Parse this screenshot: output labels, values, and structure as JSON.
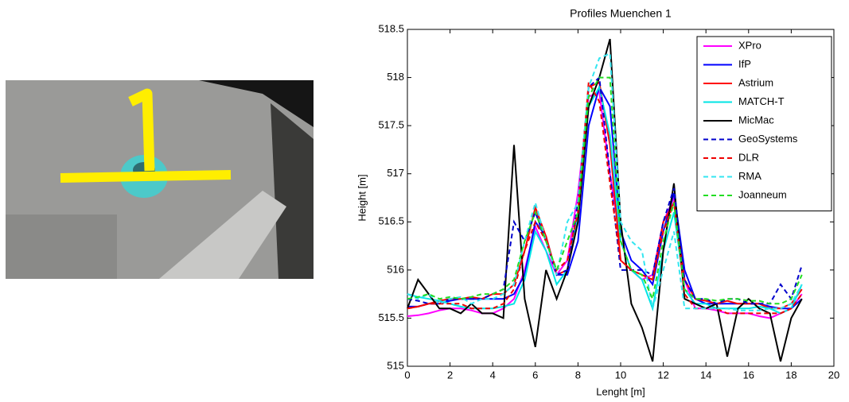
{
  "chart_data": {
    "type": "line",
    "title": "Profiles Muenchen 1",
    "xlabel": "Lenght [m]",
    "ylabel": "Height [m]",
    "xlim": [
      0,
      20
    ],
    "ylim": [
      515,
      518.5
    ],
    "xticks": [
      0,
      2,
      4,
      6,
      8,
      10,
      12,
      14,
      16,
      18,
      20
    ],
    "yticks": [
      515,
      515.5,
      516,
      516.5,
      517,
      517.5,
      518,
      518.5
    ],
    "legend": "upper right",
    "grid": false,
    "x": [
      0,
      0.5,
      1,
      1.5,
      2,
      2.5,
      3,
      3.5,
      4,
      4.5,
      5,
      5.5,
      6,
      6.5,
      7,
      7.5,
      8,
      8.5,
      9,
      9.5,
      10,
      10.5,
      11,
      11.5,
      12,
      12.5,
      13,
      13.5,
      14,
      14.5,
      15,
      15.5,
      16,
      16.5,
      17,
      17.5,
      18,
      18.5
    ],
    "series": [
      {
        "name": "XPro",
        "color": "#ff00ff",
        "style": "solid",
        "values": [
          515.52,
          515.53,
          515.55,
          515.58,
          515.6,
          515.6,
          515.58,
          515.55,
          515.55,
          515.6,
          515.7,
          516.0,
          516.45,
          516.2,
          515.95,
          516.1,
          516.8,
          517.8,
          517.85,
          517.0,
          516.3,
          516.0,
          515.9,
          515.95,
          516.5,
          516.75,
          515.9,
          515.6,
          515.6,
          515.58,
          515.55,
          515.55,
          515.55,
          515.52,
          515.5,
          515.55,
          515.6,
          515.75
        ]
      },
      {
        "name": "IfP",
        "color": "#0000ff",
        "style": "solid",
        "values": [
          515.62,
          515.62,
          515.65,
          515.65,
          515.68,
          515.7,
          515.7,
          515.7,
          515.7,
          515.7,
          515.75,
          515.95,
          516.5,
          516.35,
          515.95,
          515.95,
          516.3,
          517.5,
          517.9,
          517.7,
          516.4,
          516.1,
          516.0,
          515.85,
          516.4,
          516.8,
          516.0,
          515.7,
          515.65,
          515.65,
          515.65,
          515.65,
          515.65,
          515.65,
          515.62,
          515.6,
          515.6,
          515.7
        ]
      },
      {
        "name": "Astrium",
        "color": "#ff0000",
        "style": "solid",
        "values": [
          515.6,
          515.62,
          515.65,
          515.68,
          515.7,
          515.7,
          515.72,
          515.7,
          515.75,
          515.75,
          515.85,
          516.2,
          516.65,
          516.35,
          515.95,
          516.0,
          516.6,
          517.9,
          517.95,
          517.3,
          516.1,
          516.0,
          515.95,
          515.9,
          516.5,
          516.7,
          515.9,
          515.7,
          515.68,
          515.65,
          515.68,
          515.65,
          515.65,
          515.65,
          515.6,
          515.6,
          515.65,
          515.8
        ]
      },
      {
        "name": "MATCH-T",
        "color": "#00e5e5",
        "style": "solid",
        "values": [
          515.75,
          515.72,
          515.7,
          515.68,
          515.65,
          515.62,
          515.6,
          515.6,
          515.6,
          515.62,
          515.65,
          515.9,
          516.4,
          516.2,
          515.85,
          516.0,
          516.55,
          517.7,
          517.9,
          517.4,
          516.3,
          516.0,
          515.9,
          515.6,
          516.2,
          516.6,
          515.8,
          515.65,
          515.65,
          515.6,
          515.6,
          515.6,
          515.6,
          515.62,
          515.6,
          515.55,
          515.6,
          515.85
        ]
      },
      {
        "name": "MicMac",
        "color": "#000000",
        "style": "solid",
        "values": [
          515.6,
          515.9,
          515.75,
          515.6,
          515.6,
          515.55,
          515.65,
          515.55,
          515.55,
          515.5,
          517.3,
          515.7,
          515.2,
          516.0,
          515.7,
          516.0,
          516.5,
          517.7,
          518.0,
          518.4,
          516.5,
          515.65,
          515.4,
          515.05,
          516.2,
          516.9,
          515.7,
          515.65,
          515.6,
          515.65,
          515.1,
          515.6,
          515.7,
          515.6,
          515.55,
          515.05,
          515.5,
          515.7
        ]
      },
      {
        "name": "GeoSystems",
        "color": "#0000cc",
        "style": "dashed",
        "values": [
          515.7,
          515.68,
          515.65,
          515.65,
          515.7,
          515.7,
          515.7,
          515.7,
          515.75,
          515.8,
          516.5,
          516.3,
          516.6,
          516.3,
          515.95,
          516.0,
          516.7,
          517.9,
          518.0,
          517.0,
          516.0,
          516.0,
          516.0,
          515.95,
          516.5,
          516.85,
          515.9,
          515.7,
          515.7,
          515.65,
          515.7,
          515.7,
          515.65,
          515.65,
          515.65,
          515.85,
          515.7,
          516.05
        ]
      },
      {
        "name": "DLR",
        "color": "#ee0000",
        "style": "dashed",
        "values": [
          515.6,
          515.62,
          515.65,
          515.65,
          515.65,
          515.65,
          515.6,
          515.6,
          515.6,
          515.65,
          515.8,
          516.2,
          516.5,
          516.3,
          516.0,
          516.1,
          516.6,
          517.95,
          517.75,
          516.9,
          516.1,
          516.0,
          515.95,
          515.9,
          516.4,
          516.7,
          515.75,
          515.6,
          515.6,
          515.6,
          515.55,
          515.55,
          515.55,
          515.55,
          515.55,
          515.55,
          515.6,
          515.75
        ]
      },
      {
        "name": "RMA",
        "color": "#33e6f0",
        "style": "dashed",
        "values": [
          515.75,
          515.7,
          515.75,
          515.65,
          515.7,
          515.72,
          515.65,
          515.7,
          515.7,
          515.75,
          515.85,
          516.3,
          516.7,
          516.3,
          515.95,
          516.5,
          516.7,
          517.9,
          518.2,
          518.25,
          516.5,
          516.3,
          516.2,
          515.6,
          516.0,
          516.4,
          515.6,
          515.6,
          515.6,
          515.6,
          515.6,
          515.58,
          515.58,
          515.58,
          515.6,
          515.6,
          515.65,
          515.85
        ]
      },
      {
        "name": "Joanneum",
        "color": "#22dd22",
        "style": "dashed",
        "values": [
          515.7,
          515.72,
          515.75,
          515.7,
          515.72,
          515.7,
          515.72,
          515.75,
          515.75,
          515.8,
          515.9,
          516.3,
          516.6,
          516.3,
          516.0,
          516.3,
          516.6,
          517.8,
          518.0,
          518.0,
          516.3,
          516.0,
          515.95,
          515.7,
          516.3,
          516.7,
          515.8,
          515.7,
          515.7,
          515.68,
          515.7,
          515.7,
          515.68,
          515.68,
          515.65,
          515.65,
          515.7,
          515.95
        ]
      }
    ]
  }
}
